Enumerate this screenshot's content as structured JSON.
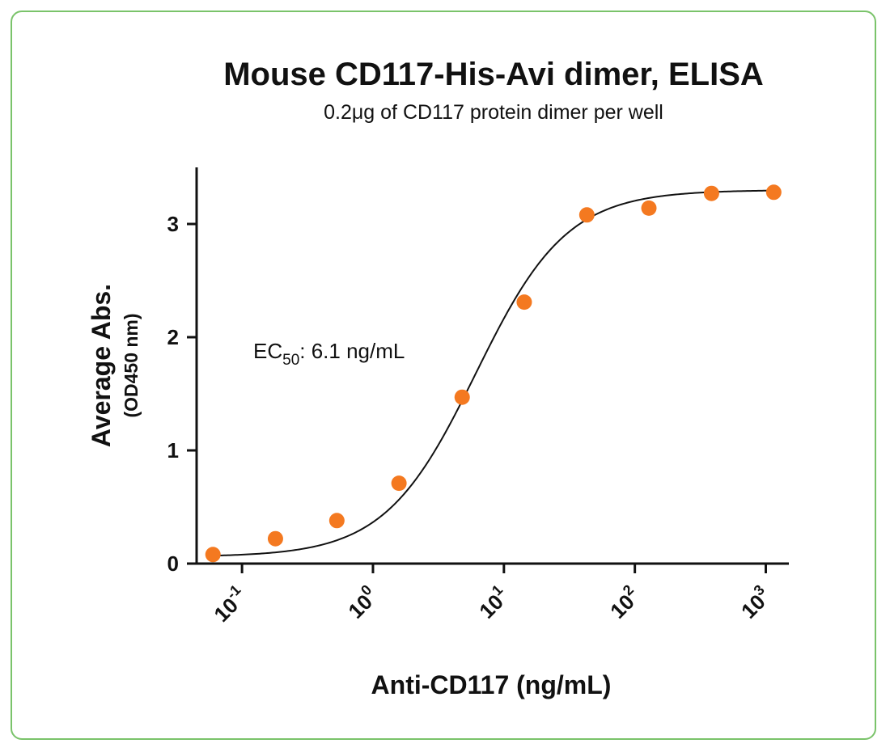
{
  "chart_data": {
    "type": "scatter",
    "title": "Mouse CD117-His-Avi dimer, ELISA",
    "subtitle": "0.2μg of CD117 protein dimer per well",
    "xlabel": "Anti-CD117  (ng/mL)",
    "ylabel": "Average Abs.",
    "ylabel_sub": "(OD450 nm)",
    "x_scale": "log10",
    "xlim": [
      0.045,
      1500
    ],
    "ylim": [
      0,
      3.5
    ],
    "x_ticks": [
      {
        "value": 0.1,
        "base": "10",
        "exp": "-1"
      },
      {
        "value": 1,
        "base": "10",
        "exp": "0"
      },
      {
        "value": 10,
        "base": "10",
        "exp": "1"
      },
      {
        "value": 100,
        "base": "10",
        "exp": "2"
      },
      {
        "value": 1000,
        "base": "10",
        "exp": "3"
      }
    ],
    "y_ticks": [
      0,
      1,
      2,
      3
    ],
    "annotation": {
      "prefix": "EC",
      "sub": "50",
      "suffix": ": 6.1 ng/mL"
    },
    "marker_color": "#f47920",
    "curve_color": "#111111",
    "series": [
      {
        "x": [
          0.06,
          0.18,
          0.53,
          1.58,
          4.8,
          14.3,
          43,
          128,
          385,
          1150
        ],
        "y": [
          0.08,
          0.22,
          0.38,
          0.71,
          1.47,
          2.31,
          3.08,
          3.14,
          3.27,
          3.28
        ]
      }
    ],
    "fit": {
      "model": "4PL",
      "bottom": 0.06,
      "top": 3.3,
      "ec50": 6.1,
      "hill": 1.25
    }
  }
}
